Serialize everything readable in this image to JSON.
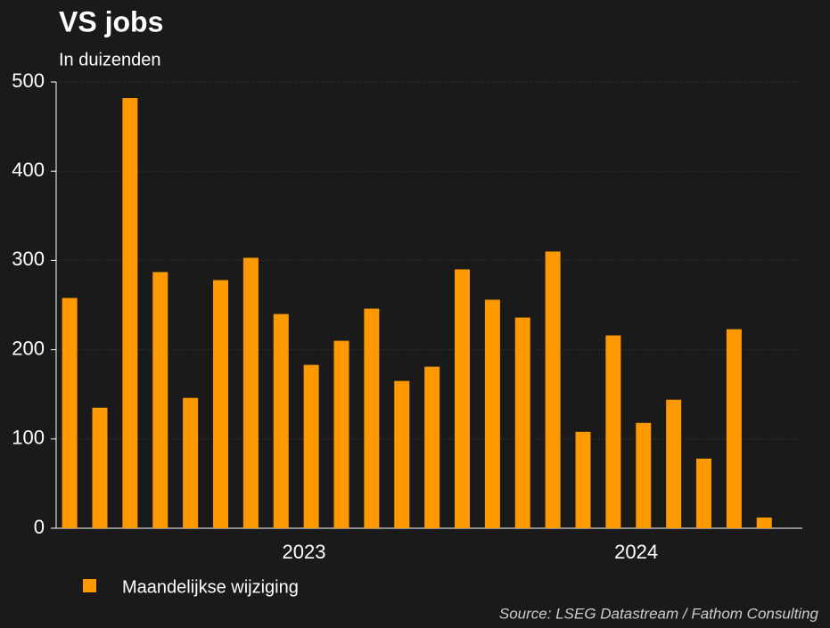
{
  "chart_data": {
    "type": "bar",
    "title": "VS jobs",
    "subtitle": "In duizenden",
    "categories": [
      null,
      null,
      null,
      null,
      null,
      null,
      null,
      "2023",
      null,
      null,
      null,
      null,
      null,
      null,
      null,
      null,
      null,
      null,
      "2024",
      null,
      null,
      null,
      null,
      null
    ],
    "series": [
      {
        "name": "Maandelijkse wijziging",
        "color": "#ff9900",
        "values": [
          258,
          135,
          482,
          287,
          146,
          278,
          303,
          240,
          183,
          210,
          246,
          165,
          181,
          290,
          256,
          236,
          310,
          108,
          216,
          118,
          144,
          78,
          223,
          12
        ]
      }
    ],
    "ylim": [
      0,
      500
    ],
    "yticks": [
      0,
      100,
      200,
      300,
      400,
      500
    ],
    "grid": true,
    "source": "Source: LSEG Datastream / Fathom Consulting"
  }
}
